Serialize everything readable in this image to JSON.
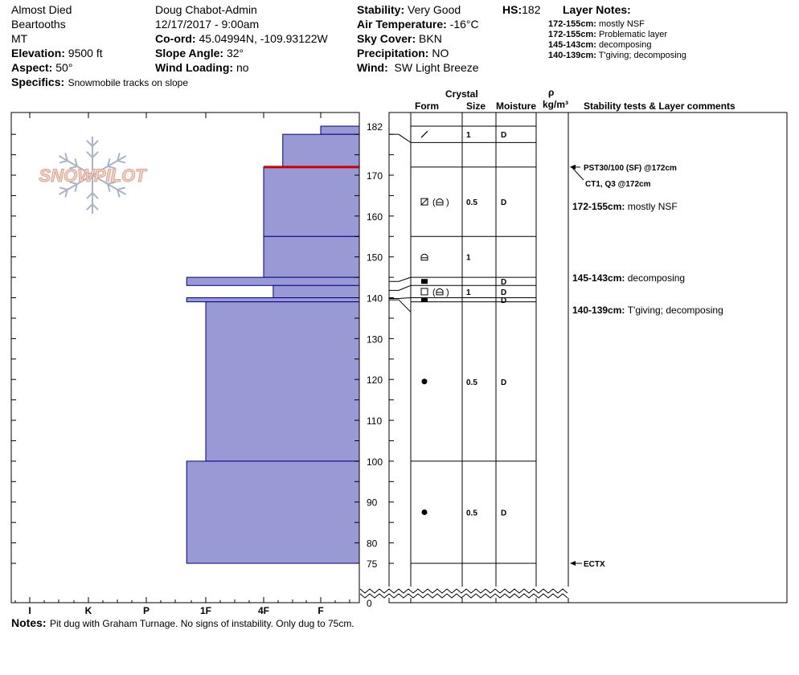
{
  "header": {
    "site_name": "Almost Died",
    "range": "Beartooths",
    "state": "MT",
    "elevation_label": "Elevation:",
    "elevation_value": "9500 ft",
    "aspect_label": "Aspect:",
    "aspect_value": "50°",
    "specifics_label": "Specifics:",
    "specifics_value": "Snowmobile tracks on slope",
    "observer": "Doug Chabot-Admin",
    "datetime": "12/17/2017 - 9:00am",
    "coord_label": "Co-ord:",
    "coord_value": "45.04994N, -109.93122W",
    "slope_label": "Slope Angle:",
    "slope_value": "32°",
    "wind_loading_label": "Wind Loading:",
    "wind_loading_value": "no",
    "stability_label": "Stability:",
    "stability_value": "Very Good",
    "air_temp_label": "Air Temperature:",
    "air_temp_value": "-16°C",
    "sky_label": "Sky Cover:",
    "sky_value": "BKN",
    "precip_label": "Precipitation:",
    "precip_value": "NO",
    "wind_label": "Wind:",
    "wind_value": "SW Light Breeze",
    "hs_label": "HS:",
    "hs_value": "182"
  },
  "layer_notes": {
    "title": "Layer Notes:",
    "items": [
      {
        "range": "172-155cm:",
        "text": "mostly NSF"
      },
      {
        "range": "172-155cm:",
        "text": "Problematic layer"
      },
      {
        "range": "145-143cm:",
        "text": "decomposing"
      },
      {
        "range": "140-139cm:",
        "text": "T'giving; decomposing"
      }
    ]
  },
  "column_headers": {
    "crystal": "Crystal",
    "form": "Form",
    "size": "Size",
    "moisture": "Moisture",
    "rho": "ρ",
    "density_unit": "kg/m³",
    "stability": "Stability tests & Layer comments"
  },
  "notes": {
    "label": "Notes:",
    "text": "Pit dug with Graham Turnage.  No signs of instability. Only dug to 75cm."
  },
  "watermark": "SNOWPILOT",
  "colors": {
    "layer_fill": "#9999d6",
    "layer_edge": "#000080",
    "weak_layer": "#cc0000",
    "logo": "#e8b8a8",
    "snowflake": "#aab4c4"
  },
  "chart_data": {
    "type": "snow-profile",
    "hardness_axis": [
      "I",
      "K",
      "P",
      "1F",
      "4F",
      "F"
    ],
    "height_ticks": [
      182,
      170,
      160,
      150,
      140,
      130,
      120,
      110,
      100,
      90,
      80,
      75,
      0
    ],
    "hs_cm": 182,
    "pit_bottom_cm": 75,
    "layers": [
      {
        "top": 182,
        "bottom": 180,
        "hardness": "F"
      },
      {
        "top": 180,
        "bottom": 172,
        "hardness": "4F-F"
      },
      {
        "top": 172,
        "bottom": 155,
        "hardness": "4F"
      },
      {
        "top": 155,
        "bottom": 145,
        "hardness": "4F"
      },
      {
        "top": 145,
        "bottom": 143,
        "hardness": "1F-"
      },
      {
        "top": 143,
        "bottom": 140,
        "hardness": "4F+"
      },
      {
        "top": 140,
        "bottom": 139,
        "hardness": "1F-"
      },
      {
        "top": 139,
        "bottom": 100,
        "hardness": "1F"
      },
      {
        "top": 100,
        "bottom": 75,
        "hardness": "1F-"
      }
    ],
    "weak_layer_cm": 172,
    "strata": [
      {
        "top": 182,
        "bottom": 178,
        "form_icon": "decomposing",
        "size": "1",
        "moisture": "D"
      },
      {
        "top": 178,
        "bottom": 172,
        "form_icon": "",
        "size": "",
        "moisture": ""
      },
      {
        "top": 172,
        "bottom": 155,
        "form_icon": "faceted-depth-hoar",
        "form_text": "(",
        "form_text2": ")",
        "size": "0.5",
        "moisture": "D"
      },
      {
        "top": 155,
        "bottom": 145,
        "form_icon": "depth-hoar",
        "size": "1",
        "moisture": ""
      },
      {
        "top": 145,
        "bottom": 143,
        "form_icon": "crust",
        "size": "",
        "moisture": "D"
      },
      {
        "top": 143,
        "bottom": 140,
        "form_icon": "faceted-depth-hoar-open",
        "form_text": "(",
        "form_text2": ")",
        "size": "1",
        "moisture": "D"
      },
      {
        "top": 140,
        "bottom": 139,
        "form_icon": "crust",
        "size": "",
        "moisture": "D"
      },
      {
        "top": 139,
        "bottom": 100,
        "form_icon": "rounded",
        "size": "0.5",
        "moisture": "D"
      },
      {
        "top": 100,
        "bottom": 75,
        "form_icon": "rounded",
        "size": "0.5",
        "moisture": "D"
      }
    ],
    "stability_tests": [
      {
        "text": "PST30/100 (SF) @172cm",
        "at_cm": 172
      },
      {
        "text": "CT1, Q3 @172cm",
        "at_cm": 172
      },
      {
        "text": "ECTX",
        "at_cm": 75
      }
    ],
    "layer_comments": [
      {
        "range": "172-155cm:",
        "text": "mostly NSF"
      },
      {
        "range": "145-143cm:",
        "text": "decomposing"
      },
      {
        "range": "140-139cm:",
        "text": "T'giving; decomposing"
      }
    ]
  }
}
